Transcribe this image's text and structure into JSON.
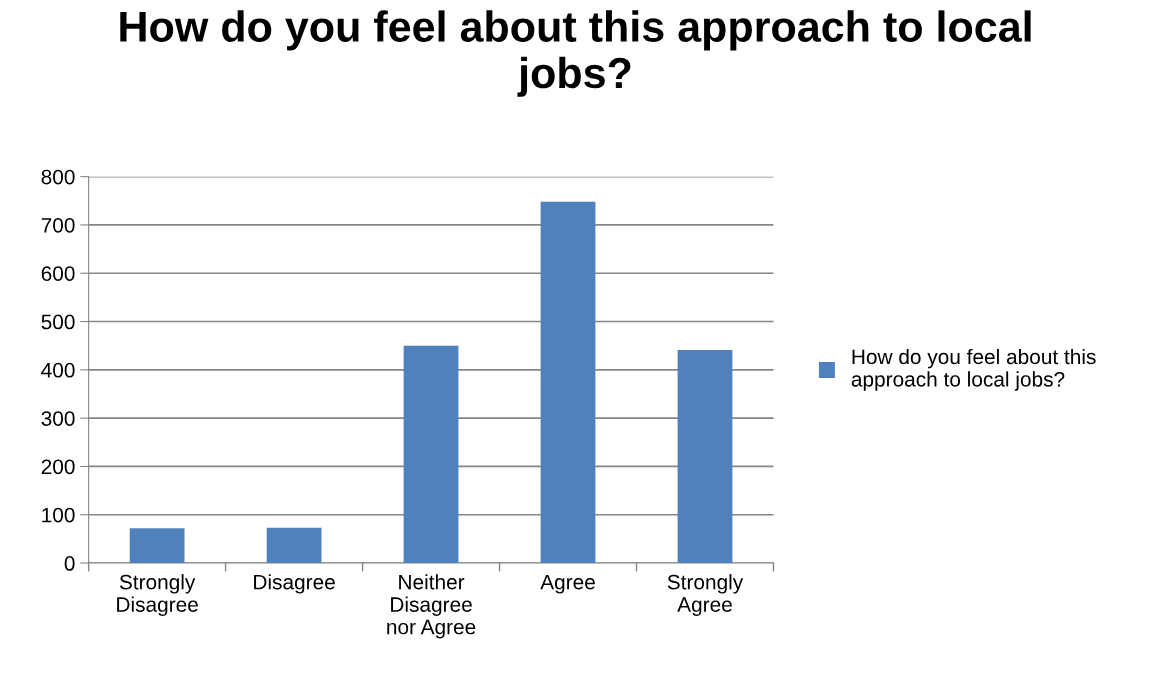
{
  "chart_data": {
    "type": "bar",
    "title": "How do you feel about this approach to local jobs?",
    "categories": [
      "Strongly\nDisagree",
      "Disagree",
      "Neither\nDisagree\nnor Agree",
      "Agree",
      "Strongly\nAgree"
    ],
    "series": [
      {
        "name": "How do you feel about this approach to local jobs?",
        "color": "#4f81bd",
        "values": [
          72,
          73,
          450,
          748,
          441
        ]
      }
    ],
    "ylim": [
      0,
      800
    ],
    "yticks": [
      0,
      100,
      200,
      300,
      400,
      500,
      600,
      700,
      800
    ],
    "grid": "y",
    "legend": "right"
  }
}
